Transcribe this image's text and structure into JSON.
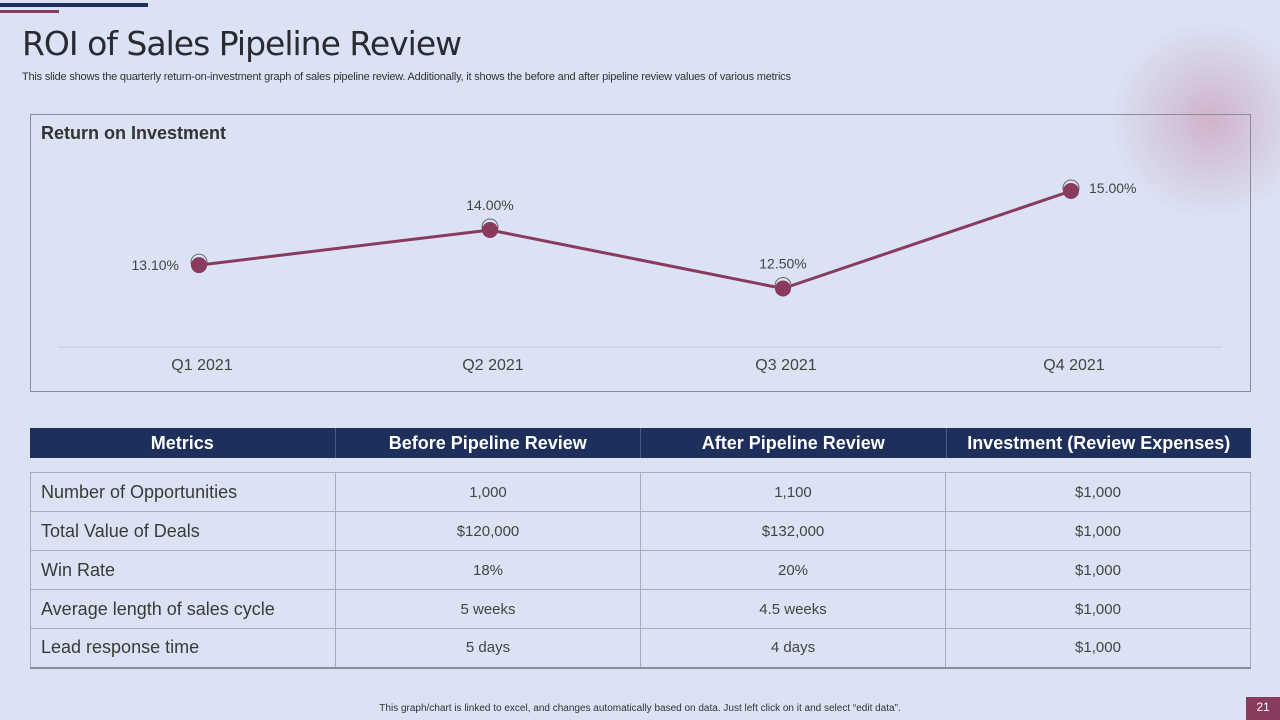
{
  "title": "ROI of Sales Pipeline Review",
  "subtitle": "This slide shows the quarterly return-on-investment graph of sales pipeline review. Additionally, it shows the before and after pipeline review values of various metrics",
  "chart_data": {
    "type": "line",
    "title": "Return on Investment",
    "categories": [
      "Q1 2021",
      "Q2 2021",
      "Q3 2021",
      "Q4 2021"
    ],
    "values": [
      13.1,
      14.0,
      12.5,
      15.0
    ],
    "labels": [
      "13.10%",
      "14.00%",
      "12.50%",
      "15.00%"
    ],
    "ylim": [
      11,
      16
    ],
    "line_color": "#8a3a5c",
    "grid": false
  },
  "table": {
    "headers": [
      "Metrics",
      "Before Pipeline Review",
      "After Pipeline Review",
      "Investment (Review Expenses)"
    ],
    "rows": [
      [
        "Number of Opportunities",
        "1,000",
        "1,100",
        "$1,000"
      ],
      [
        "Total Value of Deals",
        "$120,000",
        "$132,000",
        "$1,000"
      ],
      [
        "Win Rate",
        "18%",
        "20%",
        "$1,000"
      ],
      [
        "Average length of sales cycle",
        "5 weeks",
        "4.5 weeks",
        "$1,000"
      ],
      [
        "Lead response time",
        "5 days",
        "4 days",
        "$1,000"
      ]
    ]
  },
  "footer": "This graph/chart is linked to excel, and changes automatically based on data. Just left click on it and select “edit data”.",
  "page_number": "21"
}
